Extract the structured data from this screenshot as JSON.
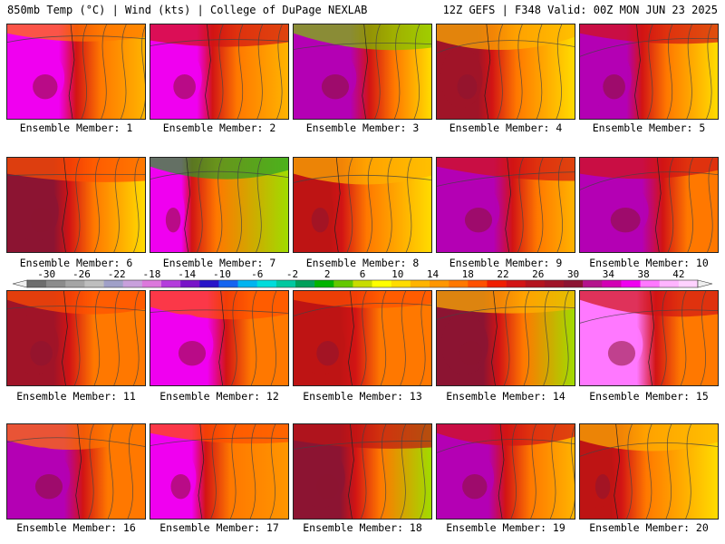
{
  "header": {
    "left": "850mb Temp (°C) | Wind (kts) | College of DuPage NEXLAB",
    "right": "12Z GEFS | F348 Valid: 00Z MON JUN 23 2025"
  },
  "member_label_prefix": "Ensemble Member: ",
  "members": [
    {
      "id": "1",
      "hot_width": 0.5,
      "core": "#f000f0",
      "east": "#ffb400",
      "north": "#ff7800"
    },
    {
      "id": "2",
      "hot_width": 0.45,
      "core": "#f000f0",
      "east": "#ffb400",
      "north": "#d21414"
    },
    {
      "id": "3",
      "hot_width": 0.55,
      "core": "#b400b4",
      "east": "#ffdc00",
      "north": "#78c800"
    },
    {
      "id": "4",
      "hot_width": 0.4,
      "core": "#a01428",
      "east": "#ffdc00",
      "north": "#ffb400"
    },
    {
      "id": "5",
      "hot_width": 0.45,
      "core": "#b400b4",
      "east": "#ffdc00",
      "north": "#d21414"
    },
    {
      "id": "6",
      "hot_width": 0.45,
      "core": "#8c1432",
      "east": "#ffdc00",
      "north": "#ff5000"
    },
    {
      "id": "7",
      "hot_width": 0.3,
      "core": "#f000f0",
      "east": "#a0dc00",
      "north": "#28a028"
    },
    {
      "id": "8",
      "hot_width": 0.35,
      "core": "#be1414",
      "east": "#ffdc00",
      "north": "#ffb400"
    },
    {
      "id": "9",
      "hot_width": 0.55,
      "core": "#b400b4",
      "east": "#ffb400",
      "north": "#d21414"
    },
    {
      "id": "10",
      "hot_width": 0.6,
      "core": "#b400b4",
      "east": "#ff7800",
      "north": "#d21414"
    },
    {
      "id": "11",
      "hot_width": 0.45,
      "core": "#a01428",
      "east": "#ff7800",
      "north": "#ff5000"
    },
    {
      "id": "12",
      "hot_width": 0.55,
      "core": "#f000f0",
      "east": "#ff7800",
      "north": "#ff5000"
    },
    {
      "id": "13",
      "hot_width": 0.45,
      "core": "#be1414",
      "east": "#ff7800",
      "north": "#ff5000"
    },
    {
      "id": "14",
      "hot_width": 0.45,
      "core": "#8c1432",
      "east": "#a0dc00",
      "north": "#ffb400"
    },
    {
      "id": "15",
      "hot_width": 0.55,
      "core": "#ff78ff",
      "east": "#ff7800",
      "north": "#d21414"
    },
    {
      "id": "16",
      "hot_width": 0.55,
      "core": "#b400b4",
      "east": "#ff7800",
      "north": "#ff7800"
    },
    {
      "id": "17",
      "hot_width": 0.4,
      "core": "#f000f0",
      "east": "#ff9600",
      "north": "#ff5000"
    },
    {
      "id": "18",
      "hot_width": 0.45,
      "core": "#8c1432",
      "east": "#a0dc00",
      "north": "#be1414"
    },
    {
      "id": "19",
      "hot_width": 0.5,
      "core": "#b400b4",
      "east": "#ffb400",
      "north": "#d21414"
    },
    {
      "id": "20",
      "hot_width": 0.3,
      "core": "#be1414",
      "east": "#ffdc00",
      "north": "#ffb400"
    }
  ],
  "colorbar": {
    "tick_labels": [
      "-30",
      "-26",
      "-22",
      "-18",
      "-14",
      "-10",
      "-6",
      "-2",
      "2",
      "6",
      "10",
      "14",
      "18",
      "22",
      "26",
      "30",
      "34",
      "38",
      "42"
    ],
    "colors": [
      "#6e6e6e",
      "#8c8c8c",
      "#a5a5a5",
      "#bebebe",
      "#a0a0c8",
      "#c8a0dc",
      "#dc78dc",
      "#b43cdc",
      "#7814c8",
      "#2814c8",
      "#1464f0",
      "#00b4f0",
      "#00dcdc",
      "#00c8a0",
      "#00a05a",
      "#00b400",
      "#64c800",
      "#c8dc00",
      "#ffff00",
      "#ffdc00",
      "#ffb400",
      "#ff9600",
      "#ff7800",
      "#ff5000",
      "#f01e00",
      "#d21414",
      "#b4141e",
      "#a01428",
      "#8c1432",
      "#b4148c",
      "#d200b4",
      "#f000f0",
      "#ff78ff",
      "#ffb4ff",
      "#ffd2ff"
    ]
  }
}
